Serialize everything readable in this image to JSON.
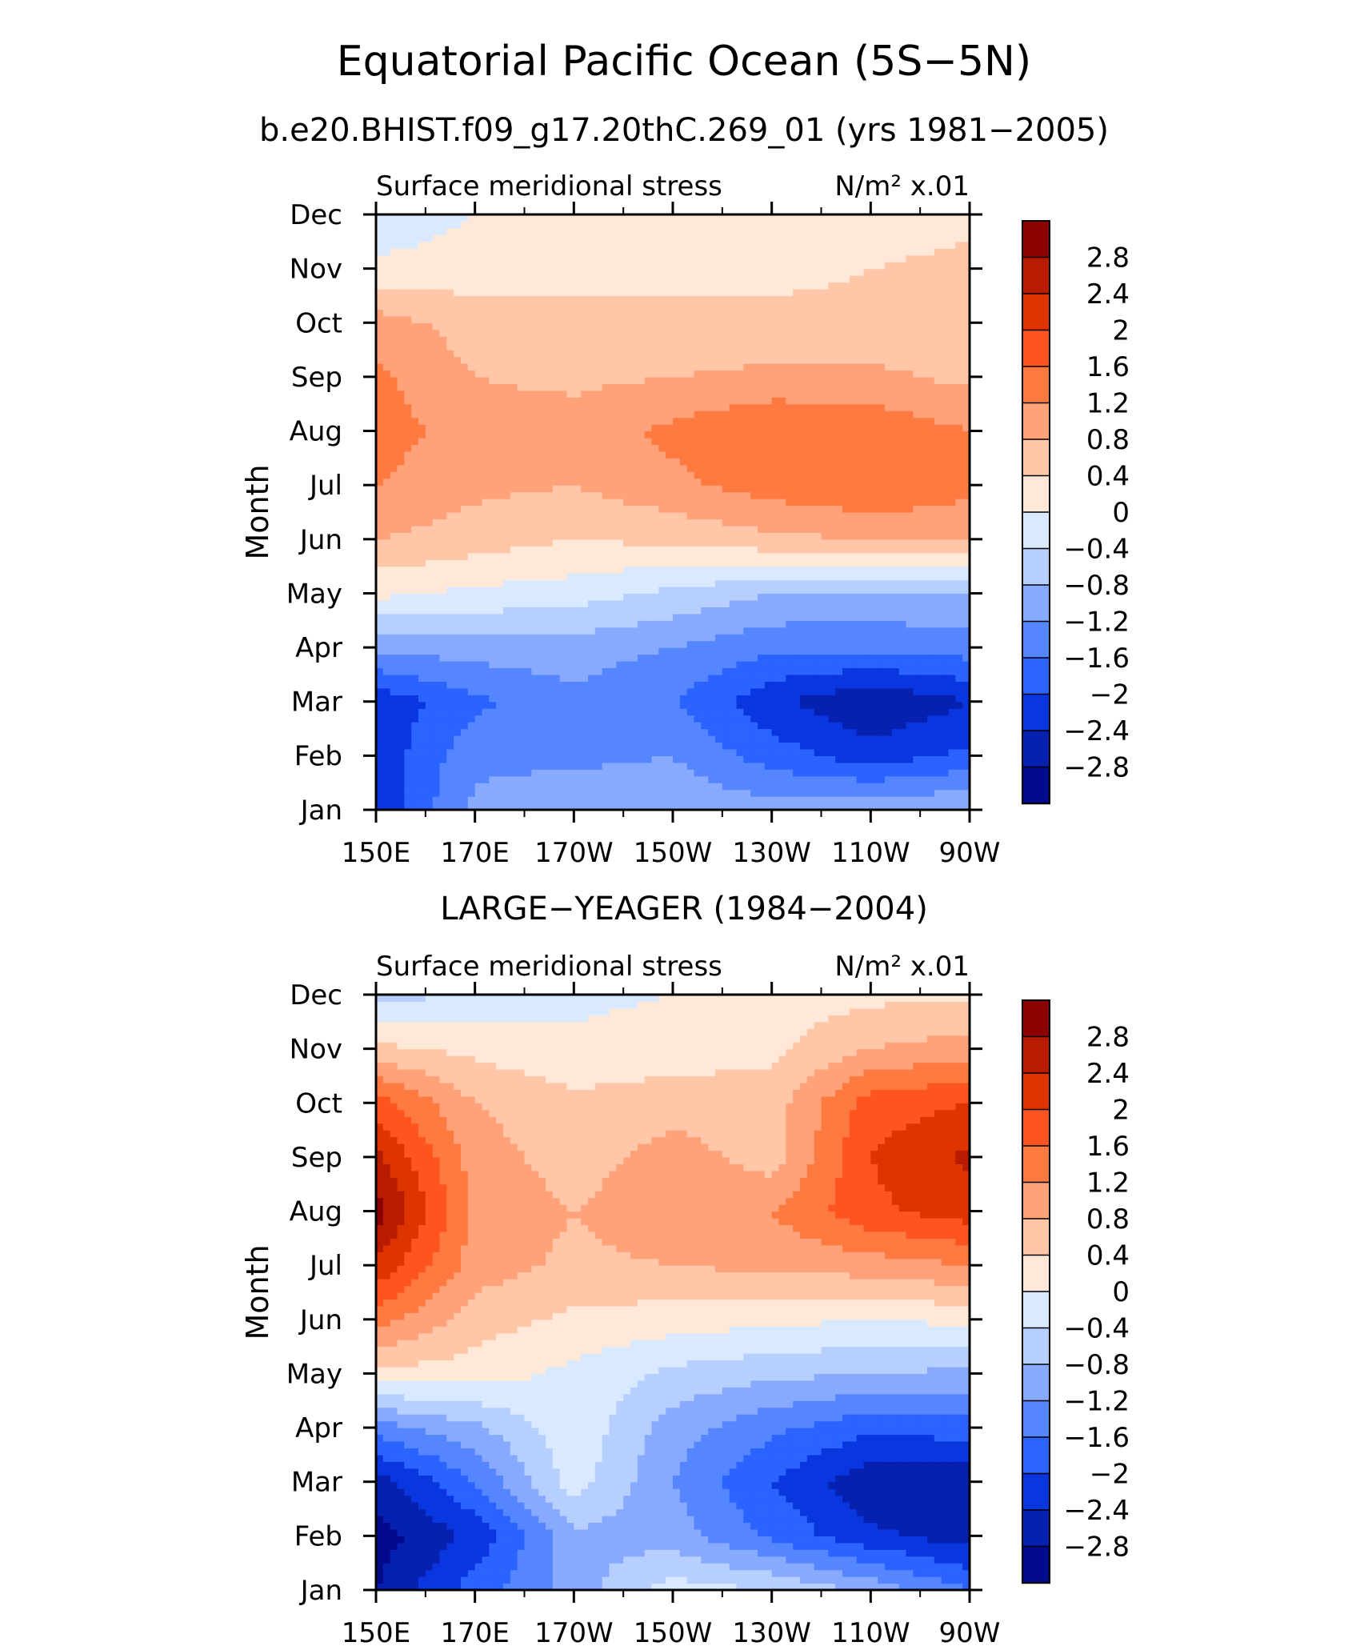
{
  "title": "Equatorial Pacific Ocean (5S−5N)",
  "subtitle": "b.e20.BHIST.f09_g17.20thC.269_01 (yrs 1981−2005)",
  "colorbar": {
    "labels": [
      "2.8",
      "2.4",
      "2",
      "1.6",
      "1.2",
      "0.8",
      "0.4",
      "0",
      "−0.4",
      "−0.8",
      "−1.2",
      "−1.6",
      "−2",
      "−2.4",
      "−2.8"
    ],
    "colors": [
      "#8b0000",
      "#b71c00",
      "#de3500",
      "#ff5420",
      "#ff7a40",
      "#ffa27a",
      "#ffc6a8",
      "#ffe8d8",
      "#d9e9ff",
      "#b7cfff",
      "#87aaff",
      "#5586ff",
      "#2a63ff",
      "#0a36e0",
      "#0620b0",
      "#000a8a"
    ]
  },
  "chart_data": [
    {
      "type": "heatmap",
      "title": "b.e20.BHIST.f09_g17.20thC.269_01 (yrs 1981−2005)",
      "left_label": "Surface meridional stress",
      "right_label": "N/m² x.01",
      "xlabel": "",
      "ylabel": "Month",
      "x_ticks": [
        "150E",
        "170E",
        "170W",
        "150W",
        "130W",
        "110W",
        "90W"
      ],
      "y_ticks": [
        "Jan",
        "Feb",
        "Mar",
        "Apr",
        "May",
        "Jun",
        "Jul",
        "Aug",
        "Sep",
        "Oct",
        "Nov",
        "Dec"
      ],
      "x_lon": [
        150,
        170,
        190,
        210,
        230,
        250,
        270
      ],
      "values": [
        [
          -2.3,
          -1.1,
          -0.9,
          -0.9,
          -1.0,
          -0.9,
          -0.8
        ],
        [
          -2.3,
          -1.3,
          -1.3,
          -1.2,
          -1.8,
          -2.2,
          -1.9
        ],
        [
          -2.3,
          -1.7,
          -1.3,
          -1.6,
          -2.3,
          -2.8,
          -2.4
        ],
        [
          -1.1,
          -1.0,
          -1.0,
          -1.2,
          -1.5,
          -1.5,
          -1.4
        ],
        [
          0.1,
          -0.1,
          -0.2,
          -0.5,
          -0.8,
          -0.9,
          -0.8
        ],
        [
          0.8,
          0.6,
          0.4,
          0.5,
          0.7,
          0.8,
          0.9
        ],
        [
          1.2,
          0.9,
          0.8,
          1.1,
          1.4,
          1.6,
          1.3
        ],
        [
          1.4,
          1.0,
          1.0,
          1.3,
          1.6,
          1.5,
          1.2
        ],
        [
          1.3,
          0.8,
          0.7,
          0.8,
          0.9,
          0.9,
          0.7
        ],
        [
          1.0,
          0.6,
          0.5,
          0.5,
          0.5,
          0.5,
          0.6
        ],
        [
          0.1,
          0.2,
          0.3,
          0.3,
          0.3,
          0.4,
          0.5
        ],
        [
          -0.3,
          0.0,
          0.1,
          0.1,
          0.2,
          0.2,
          0.3
        ]
      ]
    },
    {
      "type": "heatmap",
      "title": "LARGE−YEAGER (1984−2004)",
      "left_label": "Surface meridional stress",
      "right_label": "N/m² x.01",
      "xlabel": "",
      "ylabel": "Month",
      "x_ticks": [
        "150E",
        "170E",
        "170W",
        "150W",
        "130W",
        "110W",
        "90W"
      ],
      "y_ticks": [
        "Jan",
        "Feb",
        "Mar",
        "Apr",
        "May",
        "Jun",
        "Jul",
        "Aug",
        "Sep",
        "Oct",
        "Nov",
        "Dec"
      ],
      "x_lon": [
        150,
        170,
        190,
        210,
        230,
        250,
        270
      ],
      "values": [
        [
          -2.8,
          -1.8,
          -1.0,
          -0.2,
          -0.4,
          -0.9,
          -1.6
        ],
        [
          -3.0,
          -2.3,
          -0.9,
          -1.0,
          -1.7,
          -2.3,
          -2.6
        ],
        [
          -2.6,
          -1.6,
          -0.2,
          -1.2,
          -2.0,
          -2.7,
          -2.7
        ],
        [
          -1.4,
          -0.9,
          -0.1,
          -1.0,
          -1.5,
          -1.9,
          -1.8
        ],
        [
          0.3,
          0.2,
          -0.1,
          -0.5,
          -0.7,
          -0.8,
          -0.9
        ],
        [
          1.4,
          0.6,
          0.3,
          0.2,
          0.1,
          0.0,
          0.1
        ],
        [
          2.3,
          1.0,
          0.7,
          0.8,
          0.9,
          1.0,
          1.2
        ],
        [
          3.0,
          1.1,
          0.8,
          1.1,
          1.2,
          1.9,
          2.2
        ],
        [
          2.5,
          1.0,
          0.6,
          1.0,
          0.6,
          2.0,
          2.5
        ],
        [
          1.8,
          0.8,
          0.5,
          0.6,
          0.6,
          1.8,
          2.0
        ],
        [
          0.5,
          0.3,
          0.1,
          0.2,
          0.3,
          0.8,
          1.0
        ],
        [
          -0.6,
          -0.3,
          -0.1,
          0.0,
          0.2,
          0.3,
          0.3
        ]
      ]
    }
  ]
}
